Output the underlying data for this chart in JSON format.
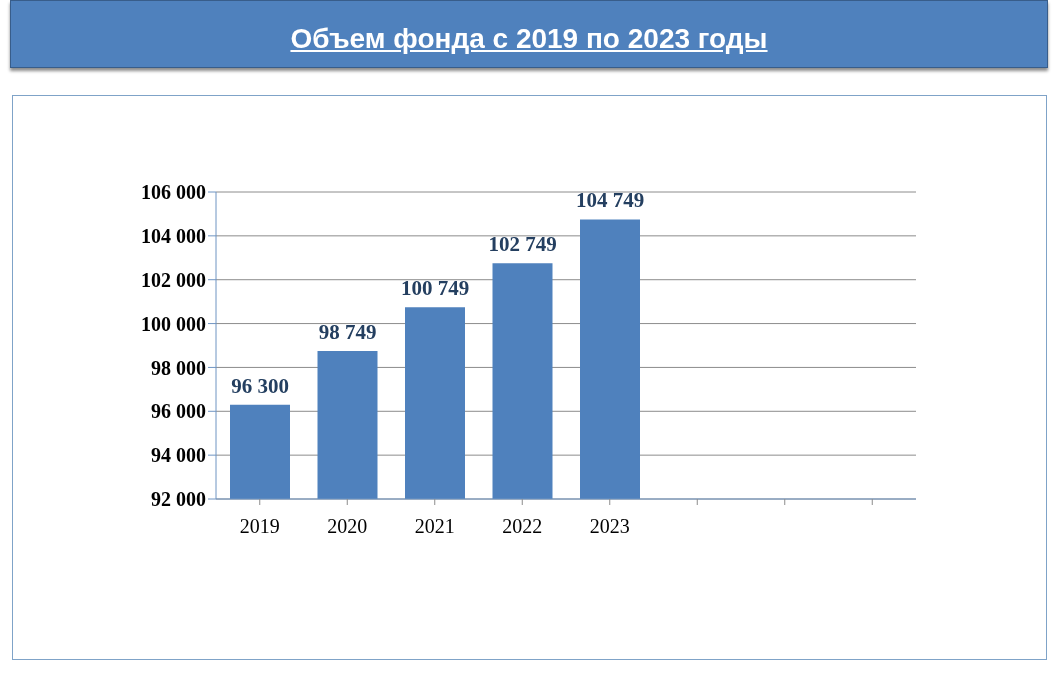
{
  "chart_data": {
    "type": "bar",
    "title": "Объем фонда с 2019 по 2023 годы",
    "categories": [
      "2019",
      "2020",
      "2021",
      "2022",
      "2023",
      null,
      null,
      null
    ],
    "values": [
      96300,
      98749,
      100749,
      102749,
      104749,
      null,
      null,
      null
    ],
    "color": "#4f81bd",
    "value_labels": [
      "96 300",
      "98 749",
      "100 749",
      "102 749",
      "104 749",
      null,
      null,
      null
    ],
    "ylim": [
      92000,
      106000
    ],
    "yticks": [
      {
        "value": 92000,
        "label": "92 000"
      },
      {
        "value": 94000,
        "label": "94 000"
      },
      {
        "value": 96000,
        "label": "96 000"
      },
      {
        "value": 98000,
        "label": "98 000"
      },
      {
        "value": 100000,
        "label": "100 000"
      },
      {
        "value": 102000,
        "label": "102 000"
      },
      {
        "value": 104000,
        "label": "104 000"
      },
      {
        "value": 106000,
        "label": "106 000"
      }
    ],
    "grid": "y"
  }
}
